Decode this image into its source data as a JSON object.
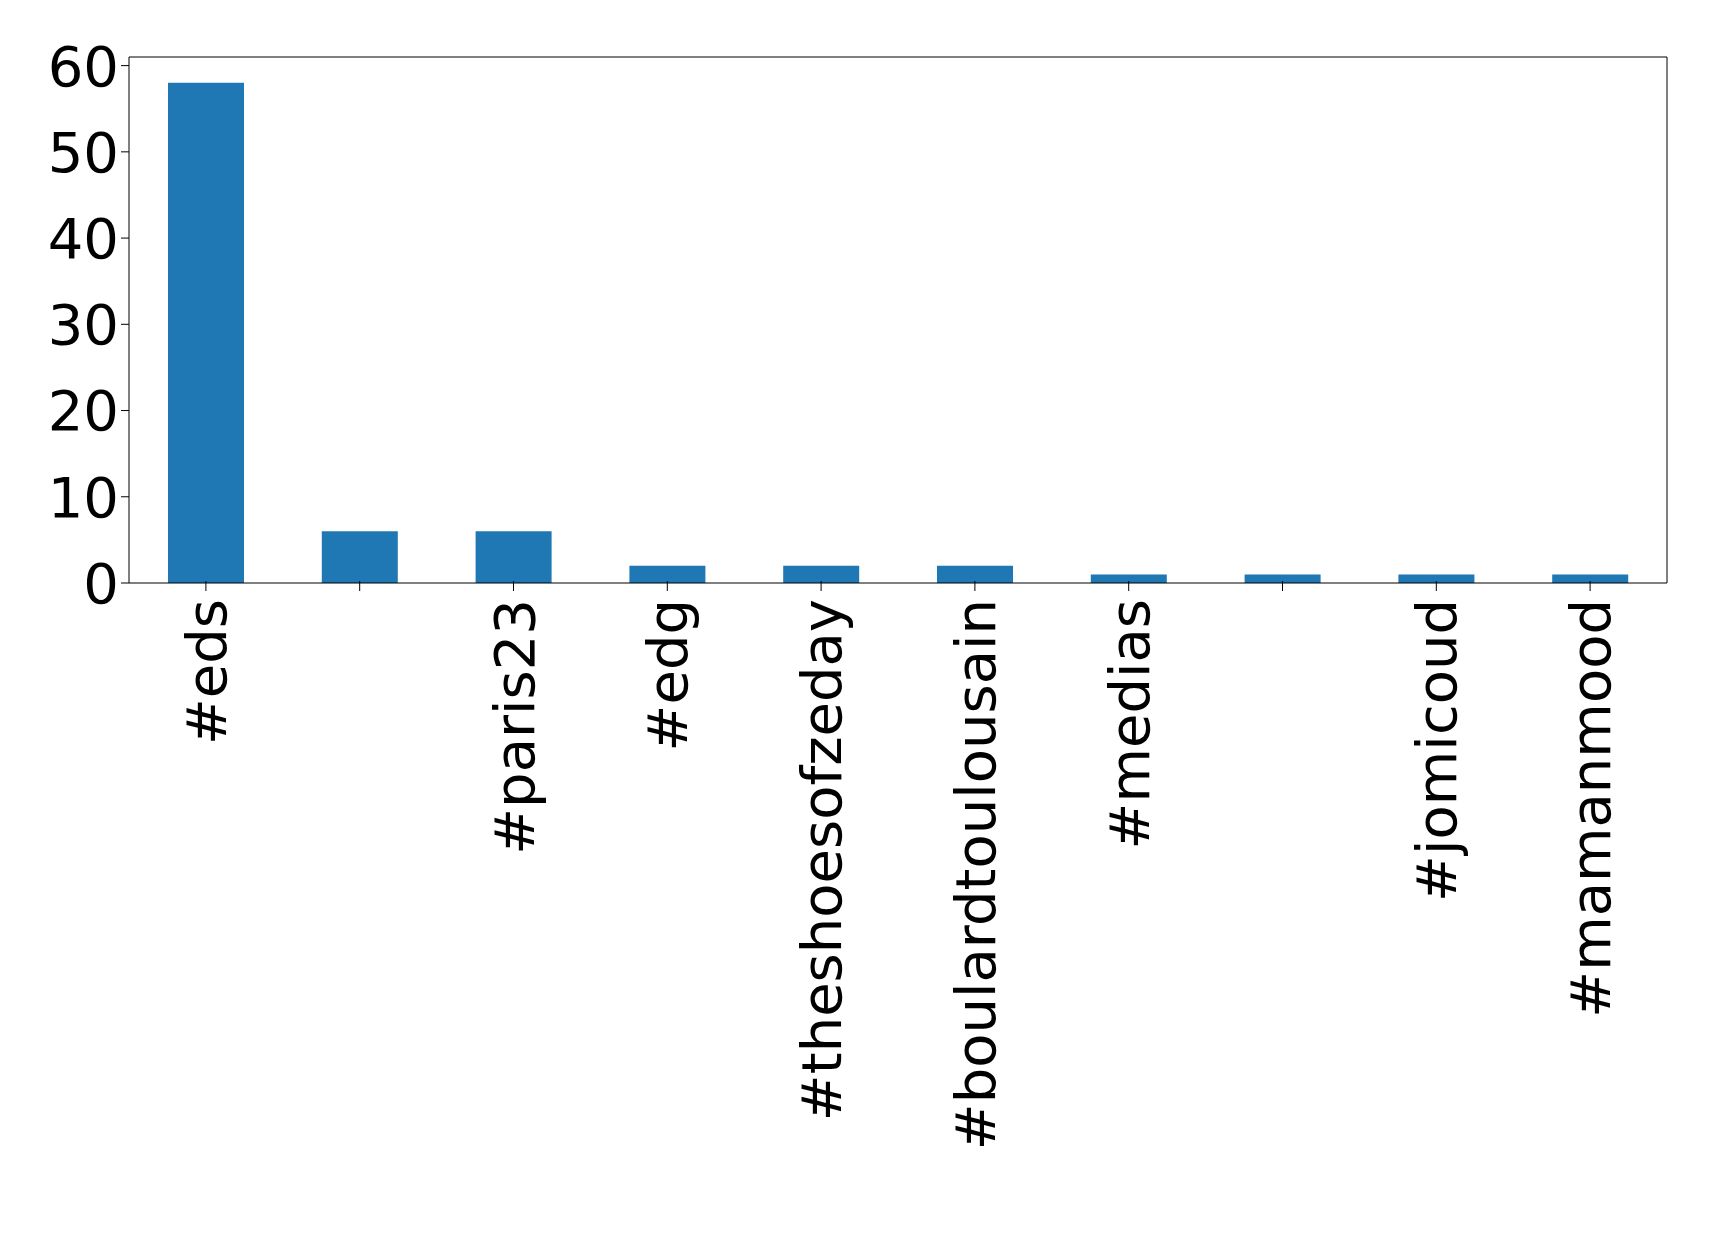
{
  "chart_data": {
    "type": "bar",
    "categories": [
      "#eds",
      null,
      "#paris23",
      "#edg",
      "#theshoesofzeday",
      "#boulardtoulousain",
      "#medias",
      null,
      "#jomicoud",
      "#mamanmood"
    ],
    "values": [
      58,
      6,
      6,
      2,
      2,
      2,
      1,
      1,
      1,
      1
    ],
    "color": "#1f77b4",
    "ylim": [
      0,
      61
    ],
    "yticks": [
      0,
      10,
      20,
      30,
      40,
      50,
      60
    ],
    "grid": false
  }
}
